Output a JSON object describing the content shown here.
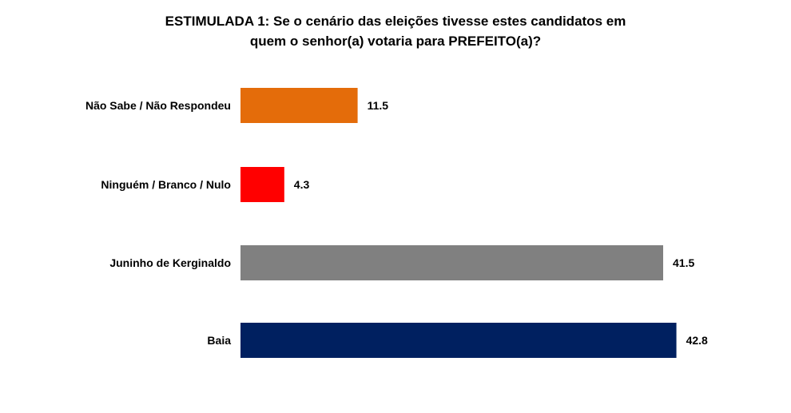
{
  "chart_data": {
    "type": "bar",
    "orientation": "horizontal",
    "title_lines": [
      "ESTIMULADA 1: Se o cenário das eleições tivesse estes candidatos em",
      "quem o senhor(a) votaria para PREFEITO(a)?"
    ],
    "categories": [
      "Não Sabe / Não Respondeu",
      "Ninguém / Branco / Nulo",
      "Juninho de Kerginaldo",
      "Baia"
    ],
    "values": [
      11.5,
      4.3,
      41.5,
      42.8
    ],
    "value_labels": [
      "11.5",
      "4.3",
      "41.5",
      "42.8"
    ],
    "colors": [
      "#E46C0A",
      "#FF0000",
      "#808080",
      "#002060"
    ],
    "xlim": [
      0,
      50
    ],
    "grid": false,
    "legend": "none"
  }
}
